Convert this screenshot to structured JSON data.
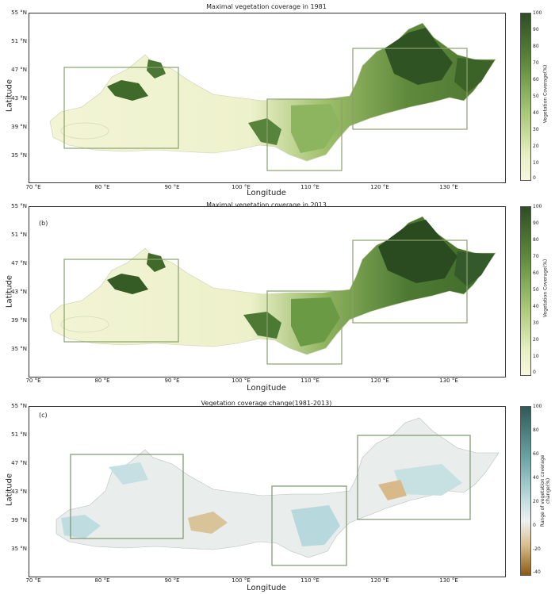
{
  "panels": [
    {
      "title": "Maximal vegetation coverage in 1981",
      "panel_label": "",
      "xlabel": "Longitude",
      "ylabel": "Latitude",
      "colorbar_label": "Vegetation Coverage(%)",
      "colorbar_ticks": [
        "100",
        "90",
        "80",
        "70",
        "60",
        "50",
        "40",
        "30",
        "20",
        "10",
        "0"
      ],
      "y_ticks": [
        "55 °N",
        "51 °N",
        "47 °N",
        "43 °N",
        "39 °N",
        "35 °N"
      ],
      "x_ticks": [
        "70 °E",
        "80 °E",
        "90 °E",
        "100 °E",
        "110 °E",
        "120 °E",
        "130 °E"
      ],
      "colors": {
        "low": "#f6f7dc",
        "mid": "#a9c977",
        "high": "#2f4d24"
      }
    },
    {
      "title": "Maximal vegetation coverage in 2013",
      "panel_label": "(b)",
      "xlabel": "Longitude",
      "ylabel": "Latitude",
      "colorbar_label": "Vegetation Coverage(%)",
      "colorbar_ticks": [
        "100",
        "90",
        "80",
        "70",
        "60",
        "50",
        "40",
        "30",
        "20",
        "10",
        "0"
      ],
      "y_ticks": [
        "55 °N",
        "51 °N",
        "47 °N",
        "43 °N",
        "39 °N",
        "35 °N"
      ],
      "x_ticks": [
        "70 °E",
        "80 °E",
        "90 °E",
        "100 °E",
        "110 °E",
        "120 °E",
        "130 °E"
      ],
      "colors": {
        "low": "#f6f7dc",
        "mid": "#a9c977",
        "high": "#2f4d24"
      }
    },
    {
      "title": "Vegetation coverage change(1981-2013)",
      "panel_label": "(c)",
      "xlabel": "Longitude",
      "ylabel": "Latitude",
      "colorbar_label": "Range of vegetation coverage change(%)",
      "colorbar_ticks": [
        "100",
        "80",
        "60",
        "40",
        "20",
        "0",
        "-20",
        "-40"
      ],
      "y_ticks": [
        "55 °N",
        "51 °N",
        "47 °N",
        "43 °N",
        "39 °N",
        "35 °N"
      ],
      "x_ticks": [
        "70 °E",
        "80 °E",
        "90 °E",
        "100 °E",
        "110 °E",
        "120 °E",
        "130 °E"
      ],
      "colors": {
        "low": "#8a5a12",
        "mid": "#eef1f0",
        "high": "#2f5a57"
      }
    }
  ]
}
